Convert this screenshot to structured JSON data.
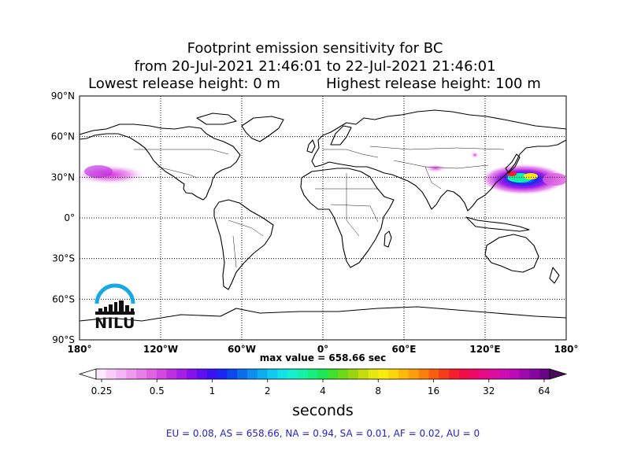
{
  "title": {
    "line1": "Footprint emission sensitivity for BC",
    "line2": "from 20-Jul-2021 21:46:01 to 22-Jul-2021 21:46:01",
    "lowest": "Lowest release height: 0 m",
    "highest": "Highest release height: 100 m"
  },
  "map": {
    "lat_labels": [
      "90°N",
      "60°N",
      "30°N",
      "0°",
      "30°S",
      "60°S",
      "90°S"
    ],
    "lon_labels": [
      "180°",
      "120°W",
      "60°W",
      "0°",
      "60°E",
      "120°E",
      "180°"
    ],
    "lat_values": [
      90,
      60,
      30,
      0,
      -30,
      -60,
      -90
    ],
    "lon_values": [
      -180,
      -120,
      -60,
      0,
      60,
      120,
      180
    ],
    "extent": {
      "lon": [
        -180,
        180
      ],
      "lat": [
        -90,
        90
      ]
    },
    "gridlines": "dotted",
    "max_value": "max value = 658.66 sec",
    "plumes": [
      {
        "name": "west-pacific",
        "lon_range": [
          -180,
          -138
        ],
        "lat_range": [
          25,
          42
        ],
        "level": "0.3-0.7"
      },
      {
        "name": "east-asia-pacific",
        "lon_range": [
          118,
          180
        ],
        "lat_range": [
          18,
          45
        ],
        "level": "0.5-658"
      },
      {
        "name": "central-asia",
        "lon_range": [
          75,
          115
        ],
        "lat_range": [
          32,
          48
        ],
        "level": "0.3-0.5"
      }
    ]
  },
  "colorbar": {
    "tick_labels": [
      "0.25",
      "0.5",
      "1",
      "2",
      "4",
      "8",
      "16",
      "32",
      "64"
    ],
    "tick_values": [
      0.25,
      0.5,
      1,
      2,
      4,
      8,
      16,
      32,
      64
    ],
    "label": "seconds",
    "colors": [
      "#fde7fd",
      "#f9ccf9",
      "#f5b4f5",
      "#ef9af0",
      "#e87ee9",
      "#df62e2",
      "#d248e0",
      "#c02ee2",
      "#a51de8",
      "#8512ee",
      "#600ef3",
      "#3a10f5",
      "#1c26f3",
      "#0b48ee",
      "#0b6cec",
      "#0c8fee",
      "#0daef0",
      "#0fcbef",
      "#11e2e6",
      "#14efcf",
      "#14f2a8",
      "#14ef7e",
      "#1ce855",
      "#3fe12c",
      "#6ed916",
      "#99d610",
      "#c2dc0e",
      "#e4e80e",
      "#f9ea0b",
      "#fcd40a",
      "#fcba0a",
      "#fc9e0a",
      "#fb800b",
      "#f95e10",
      "#f73c1a",
      "#f41e2c",
      "#f20c48",
      "#ee0866",
      "#e70a84",
      "#dd0c9e",
      "#cf0cb2",
      "#bc0ab9",
      "#a008b0",
      "#86069e",
      "#6a0486"
    ],
    "over_color": "#4a0a5a",
    "under_color": "#ffffff"
  },
  "regions_text": "EU = 0.08,  AS = 658.66,  NA = 0.94,  SA = 0.01,  AF = 0.02,  AU = 0",
  "logo": {
    "text": "NILU",
    "arc_color": "#1aa7e6"
  }
}
